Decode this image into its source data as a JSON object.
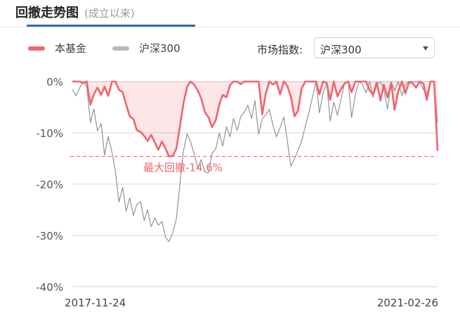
{
  "header": {
    "title": "回撤走势图",
    "subtitle": "(成立以来)"
  },
  "legend": [
    {
      "label": "本基金",
      "color": "#f0646e"
    },
    {
      "label": "沪深300",
      "color": "#b4b8be"
    }
  ],
  "index_selector": {
    "label": "市场指数:",
    "value": "沪深300",
    "icon": "chevron-down-icon"
  },
  "chart_data": {
    "type": "area",
    "title": "",
    "xlabel": "",
    "ylabel": "",
    "ylim": [
      -40,
      0
    ],
    "y_ticks": [
      0,
      -10,
      -20,
      -30,
      -40
    ],
    "y_tick_labels": [
      "0%",
      "-10%",
      "-20%",
      "-30%",
      "-40%"
    ],
    "x_range": [
      "2017-11-24",
      "2021-02-26"
    ],
    "x_tick_labels": [
      "2017-11-24",
      "2021-02-26"
    ],
    "grid": true,
    "legend_position": "top-left",
    "annotation": {
      "text": "最大回撤-14.6%",
      "value": -14.6
    },
    "series": [
      {
        "name": "本基金",
        "color": "#f0646e",
        "x": [
          "2017-11-24",
          "2017-12-06",
          "2017-12-18",
          "2017-12-29",
          "2018-01-10",
          "2018-01-22",
          "2018-02-02",
          "2018-02-14",
          "2018-02-26",
          "2018-03-09",
          "2018-03-21",
          "2018-04-02",
          "2018-04-13",
          "2018-04-25",
          "2018-05-07",
          "2018-05-18",
          "2018-05-30",
          "2018-06-11",
          "2018-06-22",
          "2018-07-04",
          "2018-07-16",
          "2018-07-27",
          "2018-08-08",
          "2018-08-20",
          "2018-08-31",
          "2018-09-12",
          "2018-09-24",
          "2018-10-05",
          "2018-10-17",
          "2018-10-29",
          "2018-11-09",
          "2018-11-21",
          "2018-12-03",
          "2018-12-14",
          "2018-12-26",
          "2019-01-07",
          "2019-01-18",
          "2019-01-30",
          "2019-02-11",
          "2019-02-22",
          "2019-03-06",
          "2019-03-18",
          "2019-03-29",
          "2019-04-10",
          "2019-04-22",
          "2019-05-03",
          "2019-05-15",
          "2019-05-27",
          "2019-06-07",
          "2019-06-19",
          "2019-07-01",
          "2019-07-12",
          "2019-07-24",
          "2019-08-05",
          "2019-08-16",
          "2019-08-28",
          "2019-09-09",
          "2019-09-20",
          "2019-10-02",
          "2019-10-14",
          "2019-10-25",
          "2019-11-06",
          "2019-11-18",
          "2019-11-29",
          "2019-12-11",
          "2019-12-23",
          "2020-01-03",
          "2020-01-15",
          "2020-01-27",
          "2020-02-07",
          "2020-02-19",
          "2020-03-02",
          "2020-03-13",
          "2020-03-25",
          "2020-04-06",
          "2020-04-17",
          "2020-04-29",
          "2020-05-11",
          "2020-05-22",
          "2020-06-03",
          "2020-06-15",
          "2020-06-26",
          "2020-07-08",
          "2020-07-20",
          "2020-07-31",
          "2020-08-12",
          "2020-08-24",
          "2020-09-04",
          "2020-09-16",
          "2020-09-28",
          "2020-10-09",
          "2020-10-21",
          "2020-11-02",
          "2020-11-13",
          "2020-11-25",
          "2020-12-07",
          "2020-12-18",
          "2020-12-30",
          "2021-01-11",
          "2021-01-22",
          "2021-02-03",
          "2021-02-15",
          "2021-02-26"
        ],
        "values": [
          0,
          0,
          0,
          -0.3,
          0,
          -4.5,
          -2.5,
          -1.2,
          -2.6,
          -1.0,
          -2.8,
          0,
          0,
          -1.6,
          -2.1,
          -4.4,
          -6.8,
          -7.3,
          -9.5,
          -9.8,
          -10.6,
          -11.6,
          -10.4,
          -11.9,
          -13.3,
          -11.7,
          -13.1,
          -14.6,
          -14.5,
          -13.1,
          -9.0,
          -4.3,
          -1.0,
          0,
          -0.6,
          -1.8,
          -3.3,
          -6.0,
          -7.0,
          -8.9,
          -7.6,
          -4.5,
          -2.6,
          -3.1,
          -0.7,
          0,
          0,
          -0.5,
          0,
          0,
          0,
          0,
          0,
          -6.4,
          -2.4,
          0,
          -0.6,
          0,
          -2.5,
          0,
          -0.8,
          -2.9,
          -6.8,
          -5.7,
          -1.4,
          0,
          0,
          0,
          0,
          -2.5,
          0,
          -0.3,
          -3.6,
          0,
          -2.9,
          -1.5,
          -0.4,
          0,
          -2.1,
          0,
          0,
          0,
          0,
          -1.8,
          -2.5,
          -0.2,
          -3.7,
          -0.6,
          -3.1,
          -0.3,
          -5.5,
          -1.9,
          0,
          -2.3,
          -0.2,
          -0.3,
          -1.2,
          0,
          -0.4,
          -3.6,
          0,
          0,
          -13.5
        ]
      },
      {
        "name": "沪深300",
        "color": "#8f9399",
        "x": [
          "2017-11-24",
          "2017-12-06",
          "2017-12-18",
          "2017-12-29",
          "2018-01-10",
          "2018-01-22",
          "2018-02-02",
          "2018-02-14",
          "2018-02-26",
          "2018-03-09",
          "2018-03-21",
          "2018-04-02",
          "2018-04-13",
          "2018-04-25",
          "2018-05-07",
          "2018-05-18",
          "2018-05-30",
          "2018-06-11",
          "2018-06-22",
          "2018-07-04",
          "2018-07-16",
          "2018-07-27",
          "2018-08-08",
          "2018-08-20",
          "2018-08-31",
          "2018-09-12",
          "2018-09-24",
          "2018-10-05",
          "2018-10-17",
          "2018-10-29",
          "2018-11-09",
          "2018-11-21",
          "2018-12-03",
          "2018-12-14",
          "2018-12-26",
          "2019-01-07",
          "2019-01-18",
          "2019-01-30",
          "2019-02-11",
          "2019-02-22",
          "2019-03-06",
          "2019-03-18",
          "2019-03-29",
          "2019-04-10",
          "2019-04-22",
          "2019-05-03",
          "2019-05-15",
          "2019-05-27",
          "2019-06-07",
          "2019-06-19",
          "2019-07-01",
          "2019-07-12",
          "2019-07-24",
          "2019-08-05",
          "2019-08-16",
          "2019-08-28",
          "2019-09-09",
          "2019-09-20",
          "2019-10-02",
          "2019-10-14",
          "2019-10-25",
          "2019-11-06",
          "2019-11-18",
          "2019-11-29",
          "2019-12-11",
          "2019-12-23",
          "2020-01-03",
          "2020-01-15",
          "2020-01-27",
          "2020-02-07",
          "2020-02-19",
          "2020-03-02",
          "2020-03-13",
          "2020-03-25",
          "2020-04-06",
          "2020-04-17",
          "2020-04-29",
          "2020-05-11",
          "2020-05-22",
          "2020-06-03",
          "2020-06-15",
          "2020-06-26",
          "2020-07-08",
          "2020-07-20",
          "2020-07-31",
          "2020-08-12",
          "2020-08-24",
          "2020-09-04",
          "2020-09-16",
          "2020-09-28",
          "2020-10-09",
          "2020-10-21",
          "2020-11-02",
          "2020-11-13",
          "2020-11-25",
          "2020-12-07",
          "2020-12-18",
          "2020-12-30",
          "2021-01-11",
          "2021-01-22",
          "2021-02-03",
          "2021-02-15",
          "2021-02-26"
        ],
        "values": [
          -1.5,
          -2.8,
          -1.2,
          0,
          -1.0,
          -8.0,
          -5.3,
          -9.6,
          -8.2,
          -14.3,
          -10.7,
          -13.8,
          -17.4,
          -23.5,
          -20.6,
          -25.3,
          -22.7,
          -26.1,
          -24.0,
          -23.4,
          -27.1,
          -25.0,
          -28.3,
          -26.6,
          -28.0,
          -27.3,
          -30.4,
          -31.2,
          -29.5,
          -26.8,
          -20.4,
          -13.5,
          -10.2,
          -11.7,
          -14.1,
          -16.9,
          -15.2,
          -17.6,
          -17.8,
          -14.0,
          -13.2,
          -10.0,
          -12.6,
          -8.8,
          -10.8,
          -7.2,
          -9.5,
          -6.8,
          -6.0,
          -4.6,
          -7.2,
          -3.7,
          -10.3,
          -7.2,
          -6.5,
          -5.4,
          -8.6,
          -10.8,
          -9.0,
          -6.9,
          -11.3,
          -16.5,
          -15.1,
          -13.4,
          -11.7,
          -8.7,
          -6.3,
          -3.2,
          0,
          -6.1,
          -2.3,
          -0.3,
          -7.7,
          -4.0,
          -6.6,
          -3.6,
          -0.3,
          0,
          -7.0,
          -2.6,
          0,
          -0.5,
          -2.2,
          0,
          -3.1,
          -0.7,
          0,
          -1.6,
          -5.4,
          0,
          -1.8,
          0,
          -2.8,
          -0.6,
          0,
          0,
          0,
          0,
          -1.6,
          -2.5,
          0,
          0,
          -8.0
        ]
      }
    ]
  }
}
